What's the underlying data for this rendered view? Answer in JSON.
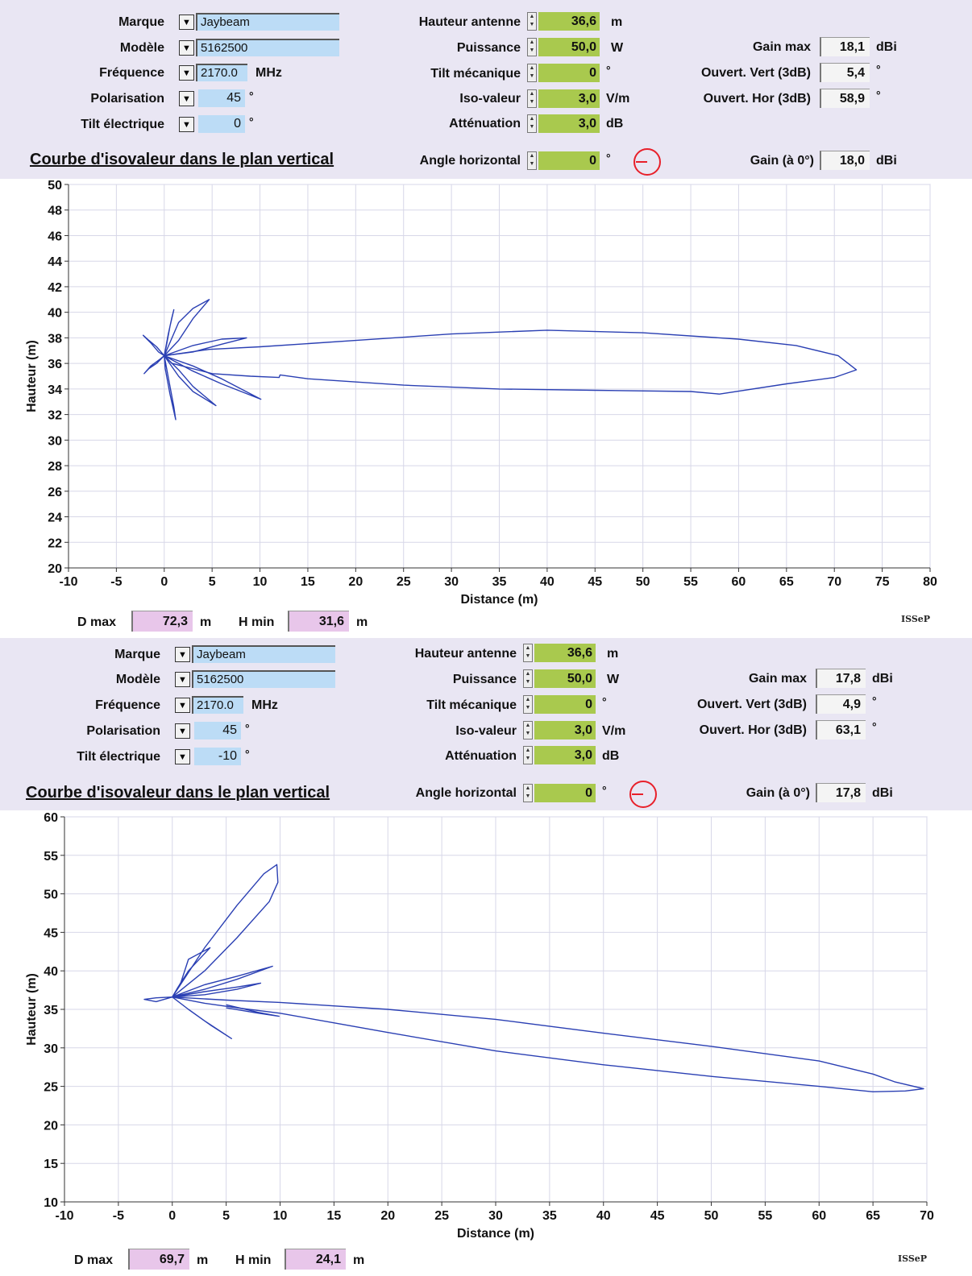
{
  "labels": {
    "marque": "Marque",
    "modele": "Modèle",
    "frequence": "Fréquence",
    "polarisation": "Polarisation",
    "tilt_electrique": "Tilt électrique",
    "hauteur_antenne": "Hauteur antenne",
    "puissance": "Puissance",
    "tilt_mecanique": "Tilt mécanique",
    "iso_valeur": "Iso-valeur",
    "attenuation": "Atténuation",
    "gain_max": "Gain max",
    "ouvert_vert": "Ouvert. Vert (3dB)",
    "ouvert_hor": "Ouvert. Hor (3dB)",
    "angle_horizontal": "Angle horizontal",
    "gain_0": "Gain (à 0°)",
    "dmax": "D max",
    "hmin": "H min",
    "chart_title": "Courbe d'isovaleur dans le plan vertical",
    "xlabel": "Distance (m)",
    "ylabel": "Hauteur (m)",
    "watermark": "ISSeP"
  },
  "units": {
    "mhz": "MHz",
    "deg": "°",
    "m": "m",
    "w": "W",
    "vm": "V/m",
    "db": "dB",
    "dbi": "dBi"
  },
  "colors": {
    "panel_bg": "#e9e6f3",
    "blue_field": "#bcdcf6",
    "green_field": "#a9c94e",
    "pink_field": "#e8c6ea",
    "curve": "#2a3fb3",
    "indicator": "#e8202a"
  },
  "panels": [
    {
      "marque": "Jaybeam",
      "modele": "5162500",
      "frequence": "2170.0",
      "polarisation": "45",
      "tilt_electrique": "0",
      "hauteur_antenne": "36,6",
      "puissance": "50,0",
      "tilt_mecanique": "0",
      "iso_valeur": "3,0",
      "attenuation": "3,0",
      "gain_max": "18,1",
      "ouvert_vert": "5,4",
      "ouvert_hor": "58,9",
      "angle_horizontal": "0",
      "gain_0": "18,0",
      "dmax": "72,3",
      "hmin": "31,6"
    },
    {
      "marque": "Jaybeam",
      "modele": "5162500",
      "frequence": "2170.0",
      "polarisation": "45",
      "tilt_electrique": "-10",
      "hauteur_antenne": "36,6",
      "puissance": "50,0",
      "tilt_mecanique": "0",
      "iso_valeur": "3,0",
      "attenuation": "3,0",
      "gain_max": "17,8",
      "ouvert_vert": "4,9",
      "ouvert_hor": "63,1",
      "angle_horizontal": "0",
      "gain_0": "17,8",
      "dmax": "69,7",
      "hmin": "24,1"
    }
  ],
  "chart_data": [
    {
      "type": "line",
      "xlabel": "Distance (m)",
      "ylabel": "Hauteur (m)",
      "xlim": [
        -10,
        80
      ],
      "ylim": [
        20,
        50
      ],
      "xticks": [
        "-10",
        "-5",
        "0",
        "5",
        "10",
        "15",
        "20",
        "25",
        "30",
        "35",
        "40",
        "45",
        "50",
        "55",
        "60",
        "65",
        "70",
        "75",
        "80"
      ],
      "yticks": [
        "20",
        "22",
        "24",
        "26",
        "28",
        "30",
        "32",
        "34",
        "36",
        "38",
        "40",
        "42",
        "44",
        "46",
        "48",
        "50"
      ],
      "grid": true,
      "series": [
        {
          "x": [
            0,
            4.7,
            10,
            20,
            30,
            40,
            50,
            60,
            66,
            70.4,
            72.3,
            70,
            65,
            58,
            55,
            45,
            35,
            25,
            15,
            12.1,
            12,
            9,
            5,
            0.8,
            0
          ],
          "y": [
            36.6,
            37.1,
            37.3,
            37.8,
            38.3,
            38.6,
            38.4,
            37.9,
            37.4,
            36.6,
            35.5,
            34.9,
            34.4,
            33.6,
            33.8,
            33.9,
            34.0,
            34.3,
            34.8,
            35.1,
            34.9,
            35.0,
            35.2,
            36.0,
            36.6
          ]
        },
        {
          "x": [
            0,
            1.5,
            3,
            4.7,
            3,
            1.5,
            0
          ],
          "y": [
            36.6,
            39.2,
            40.3,
            41.0,
            39.5,
            37.8,
            36.6
          ]
        },
        {
          "x": [
            0,
            3,
            6,
            8.6,
            6,
            3,
            0
          ],
          "y": [
            36.6,
            37.4,
            37.9,
            38.0,
            37.5,
            36.9,
            36.6
          ]
        },
        {
          "x": [
            0,
            3,
            6,
            10.1,
            6,
            3,
            0
          ],
          "y": [
            36.6,
            35.8,
            34.8,
            33.2,
            34.4,
            35.4,
            36.6
          ]
        },
        {
          "x": [
            0,
            1.5,
            3,
            5.4,
            3,
            1.5,
            0
          ],
          "y": [
            36.6,
            35.0,
            33.8,
            32.7,
            34.2,
            35.5,
            36.6
          ]
        },
        {
          "x": [
            0,
            0.5,
            1,
            1.2,
            0.6,
            0.1,
            0
          ],
          "y": [
            36.6,
            34.6,
            32.6,
            31.6,
            33.6,
            35.6,
            36.6
          ]
        },
        {
          "x": [
            0,
            -0.8,
            -1.6,
            -2.2,
            -1.4,
            -0.6,
            0
          ],
          "y": [
            36.6,
            37.3,
            37.8,
            38.2,
            37.6,
            36.9,
            36.6
          ]
        },
        {
          "x": [
            0,
            -0.8,
            -1.6,
            -2.1,
            -1.4,
            -0.5,
            0
          ],
          "y": [
            36.6,
            36.0,
            35.6,
            35.2,
            35.8,
            36.3,
            36.6
          ]
        },
        {
          "x": [
            0,
            0.4,
            0.8,
            1.0,
            0.6,
            0.2,
            0
          ],
          "y": [
            36.6,
            38.2,
            39.6,
            40.2,
            38.9,
            37.3,
            36.6
          ]
        }
      ]
    },
    {
      "type": "line",
      "xlabel": "Distance (m)",
      "ylabel": "Hauteur (m)",
      "xlim": [
        -10,
        70
      ],
      "ylim": [
        10,
        60
      ],
      "xticks": [
        "-10",
        "-5",
        "0",
        "5",
        "10",
        "15",
        "20",
        "25",
        "30",
        "35",
        "40",
        "45",
        "50",
        "55",
        "60",
        "65",
        "70"
      ],
      "yticks": [
        "10",
        "15",
        "20",
        "25",
        "30",
        "35",
        "40",
        "45",
        "50",
        "55",
        "60"
      ],
      "grid": true,
      "series": [
        {
          "x": [
            0,
            5,
            10,
            20,
            30,
            40,
            50,
            60,
            65,
            67,
            69.7,
            68,
            65,
            60,
            50,
            40,
            30,
            20,
            10,
            6,
            3,
            0
          ],
          "y": [
            36.6,
            36.2,
            35.9,
            35.0,
            33.7,
            31.9,
            30.2,
            28.3,
            26.6,
            25.6,
            24.7,
            24.4,
            24.3,
            25.0,
            26.3,
            27.8,
            29.6,
            32.0,
            34.5,
            35.2,
            35.8,
            36.6
          ]
        },
        {
          "x": [
            0,
            3,
            6,
            8.5,
            9.7,
            9.8,
            9.0,
            6.0,
            3.0,
            0
          ],
          "y": [
            36.6,
            43.0,
            48.5,
            52.6,
            53.8,
            51.5,
            49.0,
            44.3,
            40.0,
            36.6
          ]
        },
        {
          "x": [
            0,
            3,
            6,
            9.3,
            6,
            3,
            0
          ],
          "y": [
            36.6,
            38.2,
            39.3,
            40.6,
            38.9,
            37.6,
            36.6
          ]
        },
        {
          "x": [
            0,
            3,
            6,
            8.2,
            6,
            3,
            0
          ],
          "y": [
            36.6,
            37.3,
            37.9,
            38.4,
            37.6,
            36.9,
            36.6
          ]
        },
        {
          "x": [
            0,
            1.5,
            3,
            5.5,
            3.5,
            1.5,
            0
          ],
          "y": [
            36.6,
            35.0,
            33.5,
            31.2,
            33.0,
            35.0,
            36.6
          ]
        },
        {
          "x": [
            5,
            8,
            9.9,
            8,
            5
          ],
          "y": [
            35.6,
            34.6,
            34.1,
            34.5,
            35.2
          ]
        },
        {
          "x": [
            0,
            -1.5,
            -2.6,
            -1.5,
            0
          ],
          "y": [
            36.6,
            36.5,
            36.3,
            36.0,
            36.6
          ]
        },
        {
          "x": [
            0,
            0.8,
            1.5,
            3.5,
            1.5,
            0.5,
            0
          ],
          "y": [
            36.6,
            38.5,
            41.5,
            43.0,
            40.0,
            37.8,
            36.6
          ]
        }
      ]
    }
  ]
}
